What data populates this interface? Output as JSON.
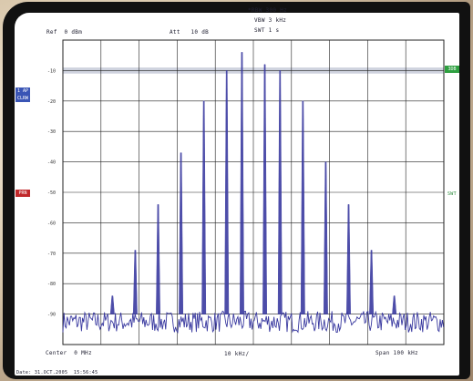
{
  "header": {
    "rbw": "*RBW 300 Hz",
    "vbw": "VBW 3 kHz",
    "swt": "SWT 1 s",
    "ref": "Ref  0 dBm",
    "att": "Att   10 dB"
  },
  "footer": {
    "center": "Center  0 MHz",
    "span_div": "10 kHz/",
    "span": "Span 100 kHz",
    "timestamp": "Date: 31.OCT.2005  15:56:45"
  },
  "markers": {
    "left_blue": "1 AP CLRW",
    "left_red": "PRN",
    "right_green": "3DB",
    "right_text": "SWT"
  },
  "colors": {
    "trace": "#3a3aa0",
    "grid": "#222222",
    "highlight_band": "#cfd3df",
    "chip_blue": "#3a55b5",
    "chip_red": "#c0282a",
    "chip_green": "#2ea040"
  },
  "chart_data": {
    "type": "line",
    "title": "",
    "xlabel": "",
    "ylabel": "",
    "x_unit": "kHz",
    "y_unit": "dBm",
    "xlim": [
      -50,
      50
    ],
    "ylim": [
      -100,
      0
    ],
    "y_tick_labels": [
      "-10",
      "-20",
      "-30",
      "-40",
      "-50",
      "-60",
      "-70",
      "-80",
      "-90"
    ],
    "noise_floor_dBm": -92,
    "spikes": {
      "x_kHz": [
        -37,
        -31,
        -25,
        -19,
        -13,
        -7,
        -3,
        3,
        7,
        13,
        19,
        25,
        31,
        37
      ],
      "y_dBm": [
        -84,
        -69,
        -54,
        -37,
        -20,
        -10,
        -4,
        -8,
        -10,
        -20,
        -40,
        -54,
        -69,
        -84
      ]
    },
    "grid": true
  }
}
